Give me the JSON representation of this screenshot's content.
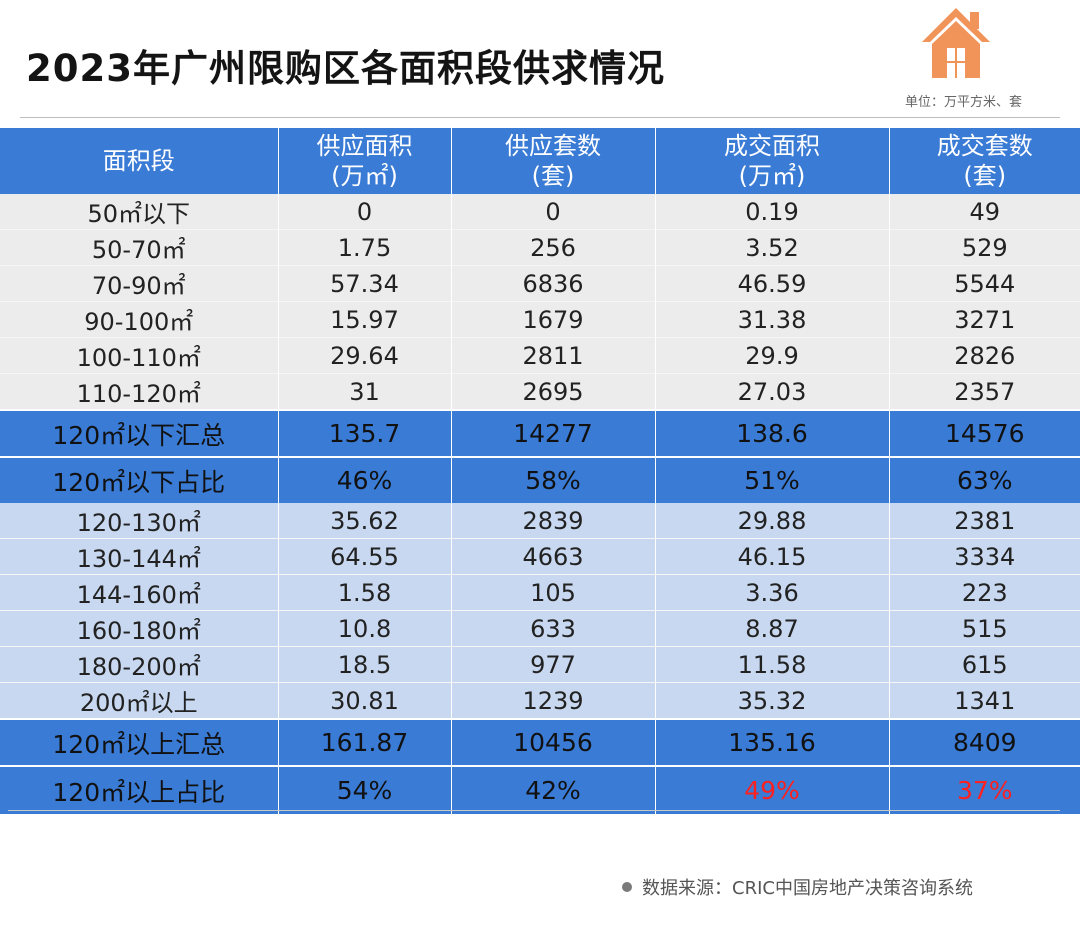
{
  "title": "2023年广州限购区各面积段供求情况",
  "unit": "单位：万平方米、套",
  "source": "数据来源：CRIC中国房地产决策咨询系统",
  "colors": {
    "header_blue": "#3a7bd5",
    "row_gray": "#ececec",
    "row_light_blue": "#c7d8f0",
    "highlight_red": "#ff2020",
    "house_orange": "#f0945a"
  },
  "chart_data": {
    "type": "table",
    "title": "2023年广州限购区各面积段供求情况",
    "columns": [
      {
        "line1": "面积段",
        "line2": ""
      },
      {
        "line1": "供应面积",
        "line2": "(万㎡)"
      },
      {
        "line1": "供应套数",
        "line2": "(套)"
      },
      {
        "line1": "成交面积",
        "line2": "(万㎡)"
      },
      {
        "line1": "成交套数",
        "line2": "(套)"
      }
    ],
    "rows_below_120": [
      [
        "50㎡以下",
        "0",
        "0",
        "0.19",
        "49"
      ],
      [
        "50-70㎡",
        "1.75",
        "256",
        "3.52",
        "529"
      ],
      [
        "70-90㎡",
        "57.34",
        "6836",
        "46.59",
        "5544"
      ],
      [
        "90-100㎡",
        "15.97",
        "1679",
        "31.38",
        "3271"
      ],
      [
        "100-110㎡",
        "29.64",
        "2811",
        "29.9",
        "2826"
      ],
      [
        "110-120㎡",
        "31",
        "2695",
        "27.03",
        "2357"
      ]
    ],
    "summary_below_120": {
      "total": [
        "120㎡以下汇总",
        "135.7",
        "14277",
        "138.6",
        "14576"
      ],
      "share": [
        "120㎡以下占比",
        "46%",
        "58%",
        "51%",
        "63%"
      ]
    },
    "rows_above_120": [
      [
        "120-130㎡",
        "35.62",
        "2839",
        "29.88",
        "2381"
      ],
      [
        "130-144㎡",
        "64.55",
        "4663",
        "46.15",
        "3334"
      ],
      [
        "144-160㎡",
        "1.58",
        "105",
        "3.36",
        "223"
      ],
      [
        "160-180㎡",
        "10.8",
        "633",
        "8.87",
        "515"
      ],
      [
        "180-200㎡",
        "18.5",
        "977",
        "11.58",
        "615"
      ],
      [
        "200㎡以上",
        "30.81",
        "1239",
        "35.32",
        "1341"
      ]
    ],
    "summary_above_120": {
      "total": [
        "120㎡以上汇总",
        "161.87",
        "10456",
        "135.16",
        "8409"
      ],
      "share": [
        "120㎡以上占比",
        "54%",
        "42%",
        "49%",
        "37%"
      ]
    }
  }
}
